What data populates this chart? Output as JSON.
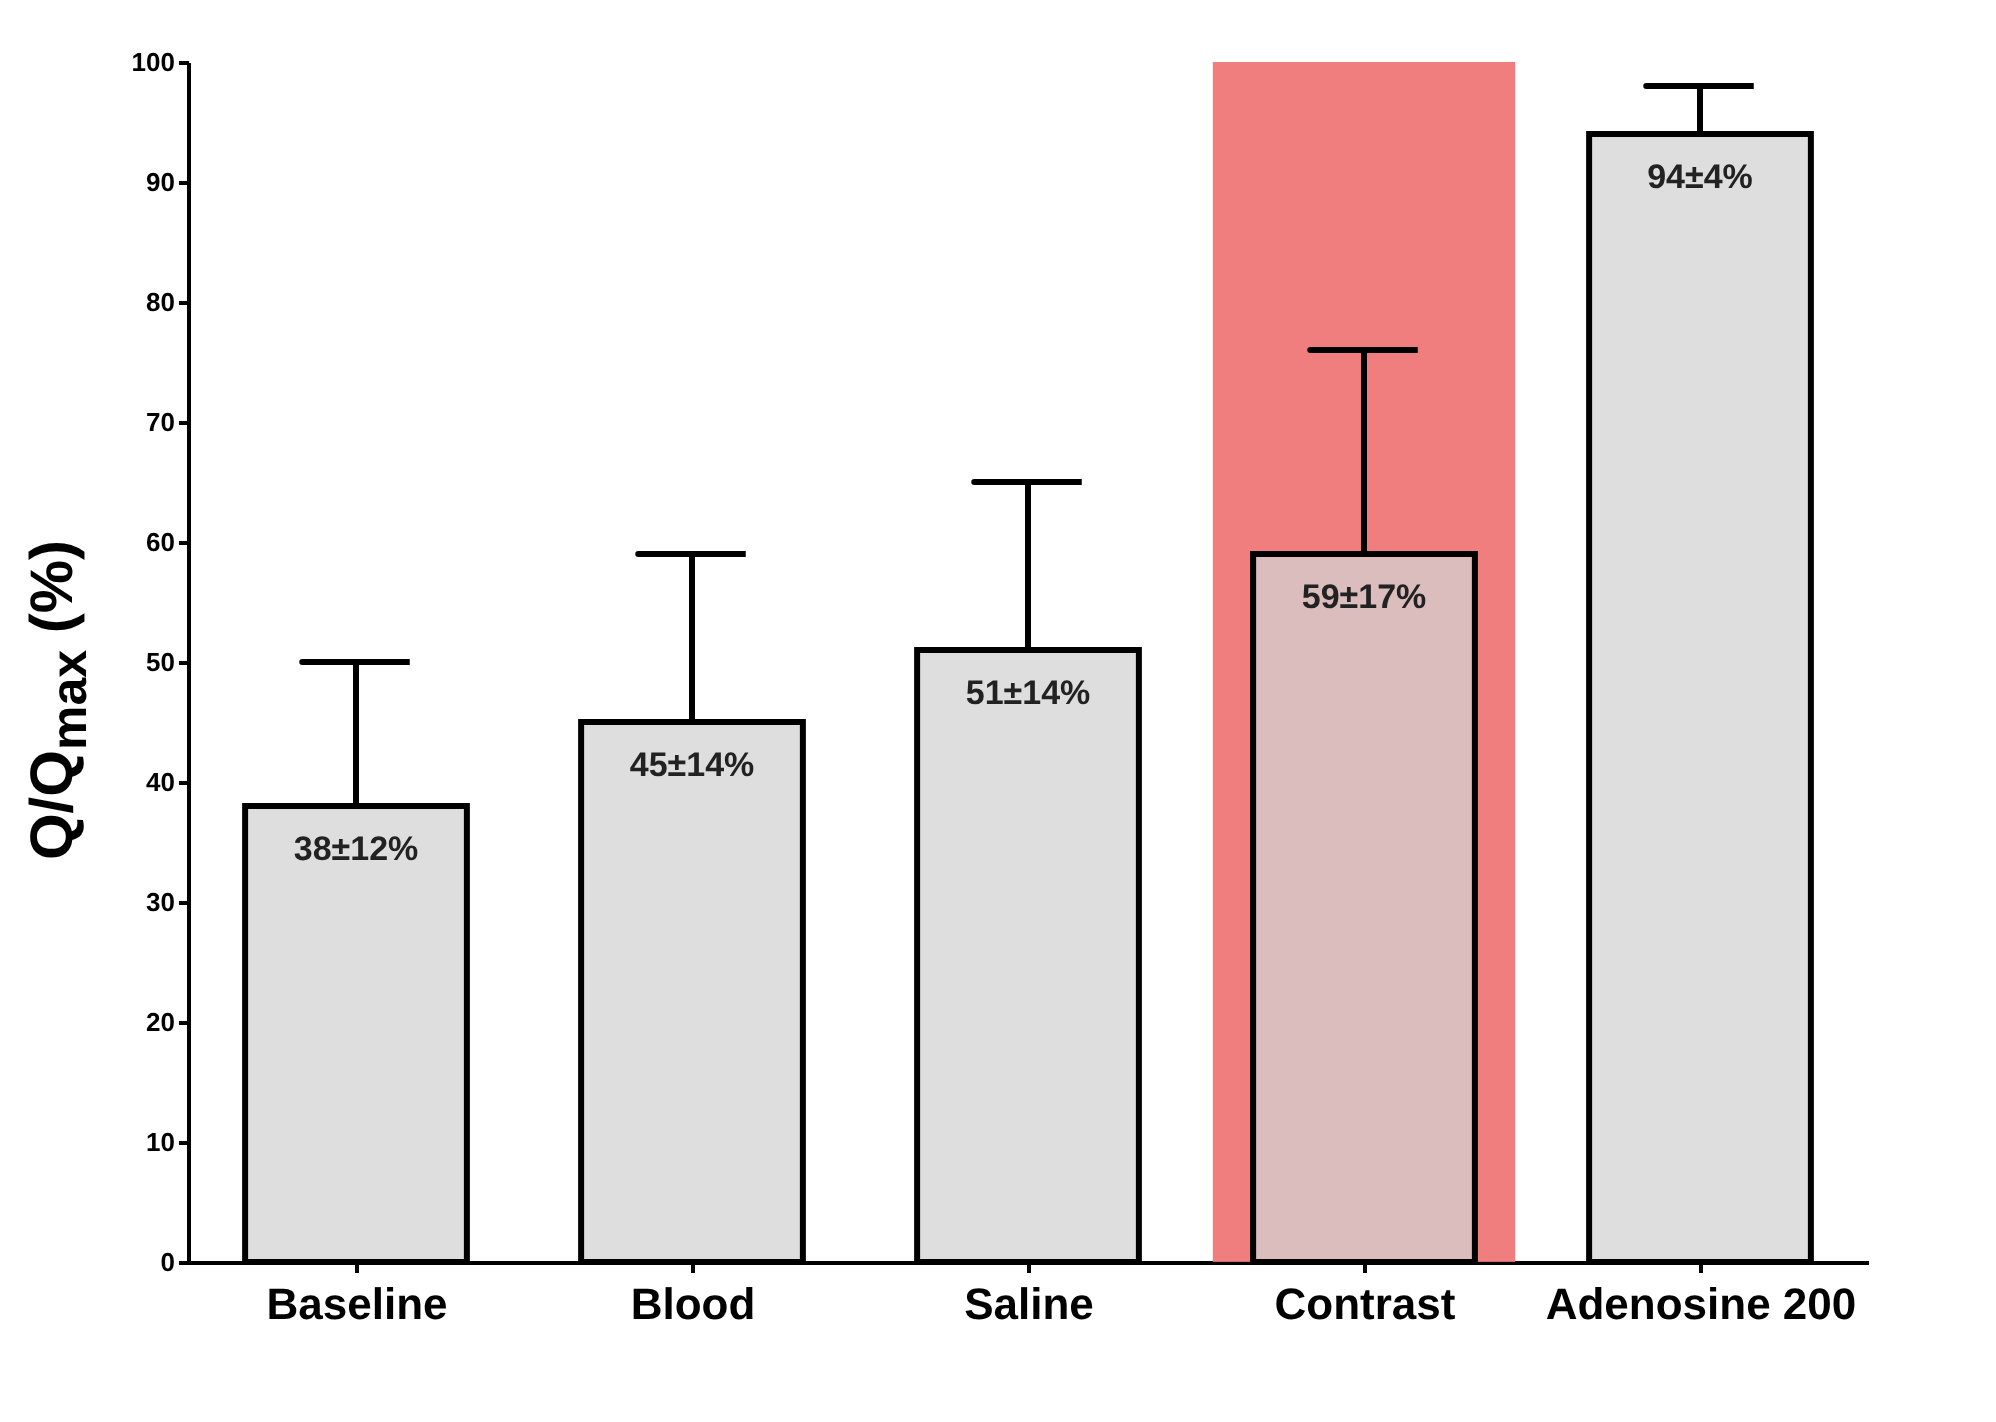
{
  "chart_data": {
    "type": "bar",
    "ylabel": "Q/Q$_{max}$ (%)",
    "categories": [
      "Baseline",
      "Blood",
      "Saline",
      "Contrast",
      "Adenosine 200"
    ],
    "values": [
      38,
      45,
      51,
      59,
      94
    ],
    "errors": [
      [
        38,
        50
      ],
      [
        45,
        59
      ],
      [
        51,
        65
      ],
      [
        59,
        76
      ],
      [
        94,
        98
      ]
    ],
    "value_labels": [
      "38±12%",
      "45±14%",
      "51±14%",
      "59±17%",
      "94±4%"
    ],
    "color": "#d3d3d3",
    "ylim": [
      0,
      100
    ],
    "yticks": [
      0,
      10,
      20,
      30,
      40,
      50,
      60,
      70,
      80,
      90,
      100
    ],
    "bands": [
      {
        "axis": "x",
        "from": "Contrast",
        "to": "Contrast",
        "color": "#f07070"
      }
    ],
    "grid": false
  }
}
